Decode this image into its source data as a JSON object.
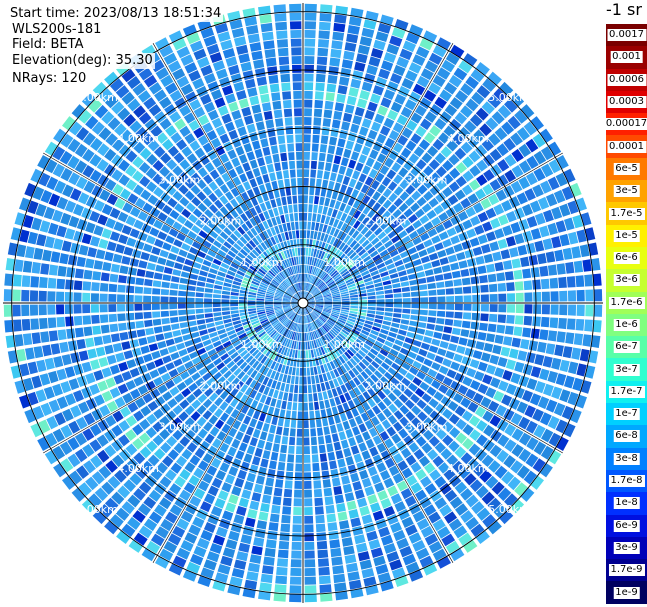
{
  "info": {
    "start_time": "Start time: 2023/08/13 18:51:34",
    "instrument": "WLS200s-181",
    "field": "Field: BETA",
    "elevation": "Elevation(deg): 35.30",
    "nrays": "NRays: 120"
  },
  "plot": {
    "range_ring_labels": [
      "1.00km",
      "2.00km",
      "3.00km",
      "4.00km",
      "5.00km"
    ],
    "range_rings_km": [
      1,
      2,
      3,
      4,
      5
    ],
    "max_range_km": 5.15,
    "nrays": 120
  },
  "colorbar": {
    "units": "-1 sr",
    "levels": [
      {
        "label": "0.0017",
        "color": "#7a0000"
      },
      {
        "label": "0.001",
        "color": "#9a0000"
      },
      {
        "label": "0.0006",
        "color": "#c00000"
      },
      {
        "label": "0.0003",
        "color": "#e00000"
      },
      {
        "label": "0.00017",
        "color": "#ff2000"
      },
      {
        "label": "0.0001",
        "color": "#ff4a00"
      },
      {
        "label": "6e-5",
        "color": "#ff7a00"
      },
      {
        "label": "3e-5",
        "color": "#ffa200"
      },
      {
        "label": "1.7e-5",
        "color": "#ffc800"
      },
      {
        "label": "1e-5",
        "color": "#fff000"
      },
      {
        "label": "6e-6",
        "color": "#e8ff10"
      },
      {
        "label": "3e-6",
        "color": "#c6ff30"
      },
      {
        "label": "1.7e-6",
        "color": "#a0ff58"
      },
      {
        "label": "1e-6",
        "color": "#80ff80"
      },
      {
        "label": "6e-7",
        "color": "#58ffa8"
      },
      {
        "label": "3e-7",
        "color": "#30ffd0"
      },
      {
        "label": "1.7e-7",
        "color": "#10f0f0"
      },
      {
        "label": "1e-7",
        "color": "#00d0ff"
      },
      {
        "label": "6e-8",
        "color": "#00a8ff"
      },
      {
        "label": "3e-8",
        "color": "#0080ff"
      },
      {
        "label": "1.7e-8",
        "color": "#0058ff"
      },
      {
        "label": "1e-8",
        "color": "#0030ff"
      },
      {
        "label": "6e-9",
        "color": "#0010e0"
      },
      {
        "label": "3e-9",
        "color": "#0000b8"
      },
      {
        "label": "1.7e-9",
        "color": "#000090"
      },
      {
        "label": "1e-9",
        "color": "#000060"
      }
    ]
  },
  "colors": {
    "background": "#ffffff",
    "ring": "#000000",
    "ray_gap": "#ffffff",
    "field_dominant": "#2a8fe6"
  }
}
